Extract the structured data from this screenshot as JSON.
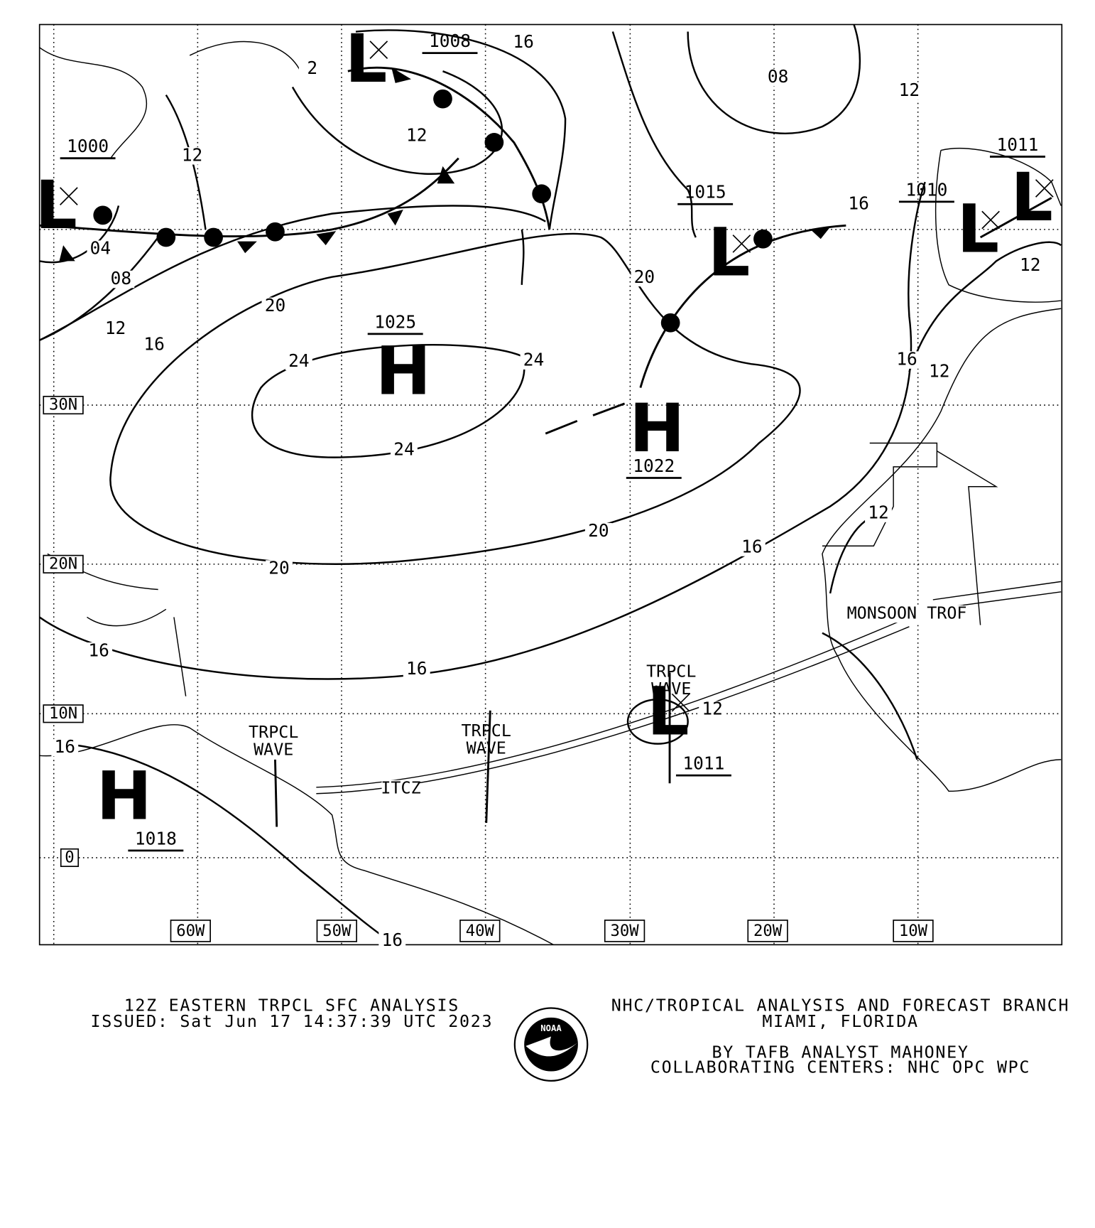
{
  "map": {
    "lat_labels": [
      "30N",
      "20N",
      "10N",
      "0"
    ],
    "lon_labels": [
      "60W",
      "50W",
      "40W",
      "30W",
      "20W",
      "10W"
    ],
    "isobar_labels": [
      "16",
      "12",
      "12",
      "2",
      "08",
      "12",
      "16",
      "20",
      "12",
      "04",
      "08",
      "12",
      "16",
      "20",
      "24",
      "24",
      "24",
      "16",
      "12",
      "20",
      "16",
      "20",
      "12",
      "16",
      "16",
      "12",
      "16",
      "16"
    ],
    "pressure_centers": [
      {
        "symbol": "L",
        "pressure": "1008"
      },
      {
        "symbol": "L",
        "pressure": "1000"
      },
      {
        "symbol": "L",
        "pressure": "1015"
      },
      {
        "symbol": "L",
        "pressure": "1010"
      },
      {
        "symbol": "L",
        "pressure": "1011"
      },
      {
        "symbol": "H",
        "pressure": "1025"
      },
      {
        "symbol": "H",
        "pressure": "1022"
      },
      {
        "symbol": "L",
        "pressure": "1011"
      },
      {
        "symbol": "H",
        "pressure": "1018"
      }
    ],
    "features": [
      "TRPCL WAVE",
      "TRPCL WAVE",
      "TRPCL WAVE",
      "ITCZ",
      "MONSOON TROF"
    ]
  },
  "footer": {
    "title": "12Z EASTERN TRPCL SFC ANALYSIS",
    "issued": "ISSUED: Sat Jun 17 14:37:39 UTC 2023",
    "office": "NHC/TROPICAL ANALYSIS AND FORECAST BRANCH",
    "location": "MIAMI,  FLORIDA",
    "analyst": "BY TAFB ANALYST  MAHONEY",
    "collaborating": "COLLABORATING CENTERS: NHC OPC WPC",
    "logo_text": "NOAA"
  }
}
